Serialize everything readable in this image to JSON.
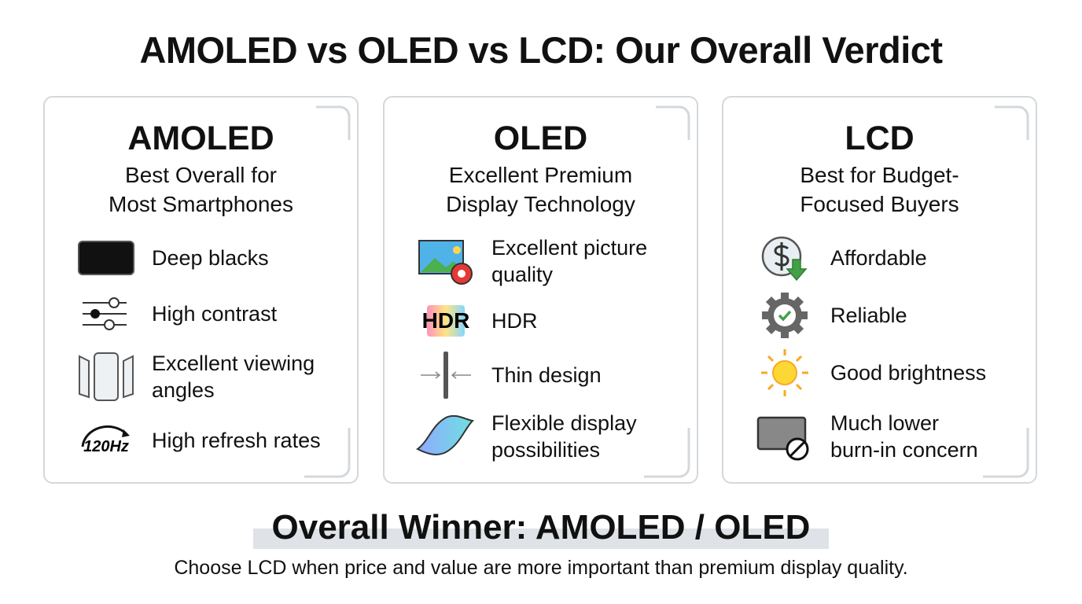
{
  "header": {
    "title": "AMOLED vs OLED vs LCD: Our Overall Verdict"
  },
  "cards": [
    {
      "name": "AMOLED",
      "subtitle": [
        "Best Overall for",
        "Most Smartphones"
      ],
      "features": [
        {
          "label": [
            "Deep blacks"
          ]
        },
        {
          "label": [
            "High contrast"
          ]
        },
        {
          "label": [
            "Excellent viewing",
            "angles"
          ]
        },
        {
          "icon_text": "120Hz",
          "label": [
            "High refresh rates"
          ]
        }
      ]
    },
    {
      "name": "OLED",
      "subtitle": [
        "Excellent Premium",
        "Display Technology"
      ],
      "features": [
        {
          "label": [
            "Excellent picture",
            "quality"
          ]
        },
        {
          "icon_text": "HDR",
          "label": [
            "HDR"
          ]
        },
        {
          "label": [
            "Thin design"
          ]
        },
        {
          "label": [
            "Flexible display",
            "possibilities"
          ]
        }
      ]
    },
    {
      "name": "LCD",
      "subtitle": [
        "Best for Budget-",
        "Focused Buyers"
      ],
      "features": [
        {
          "label": [
            "Affordable"
          ]
        },
        {
          "label": [
            "Reliable"
          ]
        },
        {
          "label": [
            "Good brightness"
          ]
        },
        {
          "label": [
            "Much lower",
            "burn-in concern"
          ]
        }
      ]
    }
  ],
  "footer": {
    "winner": "Overall Winner: AMOLED / OLED",
    "note": "Choose LCD when price and value are more important than premium display quality."
  }
}
